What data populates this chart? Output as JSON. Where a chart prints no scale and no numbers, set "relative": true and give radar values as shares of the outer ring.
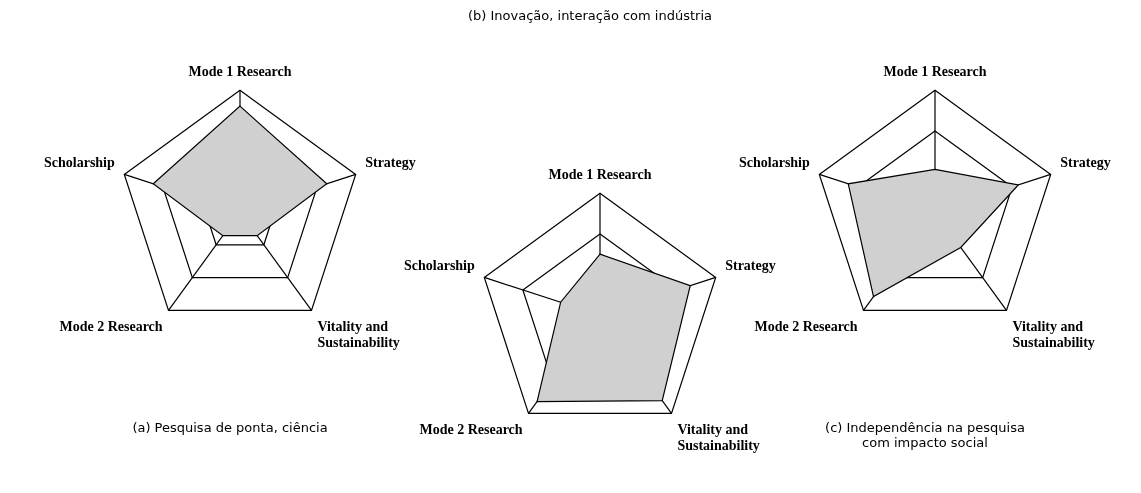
{
  "chart_data": [
    {
      "type": "radar",
      "title": "(a) Pesquisa de ponta, ciência",
      "categories": [
        "Mode 1 Research",
        "Strategy",
        "Vitality and\nSustainability",
        "Mode 2 Research",
        "Scholarship"
      ],
      "relative": true,
      "grid": true,
      "legend": false,
      "marker": "none",
      "series": [
        {
          "color": "#d0d0d0",
          "values": [
            0.87,
            0.75,
            0.24,
            0.24,
            0.75
          ]
        }
      ]
    },
    {
      "type": "radar",
      "title": "(b) Inovação, interação com indústria",
      "categories": [
        "Mode 1 Research",
        "Strategy",
        "Vitality and\nSustainability",
        "Mode 2 Research",
        "Scholarship"
      ],
      "relative": true,
      "grid": true,
      "legend": false,
      "marker": "none",
      "series": [
        {
          "color": "#d0d0d0",
          "values": [
            0.5,
            0.78,
            0.87,
            0.88,
            0.34
          ]
        }
      ]
    },
    {
      "type": "radar",
      "title": "(c) Independência na pesquisa\ncom impacto social",
      "categories": [
        "Mode 1 Research",
        "Strategy",
        "Vitality and\nSustainability",
        "Mode 2 Research",
        "Scholarship"
      ],
      "relative": true,
      "grid": true,
      "legend": false,
      "marker": "none",
      "series": [
        {
          "color": "#d0d0d0",
          "values": [
            0.35,
            0.72,
            0.36,
            0.86,
            0.75
          ]
        }
      ]
    }
  ]
}
